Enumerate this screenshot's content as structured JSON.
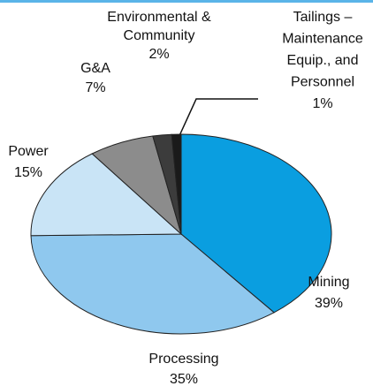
{
  "chart_data": {
    "type": "pie",
    "categories": [
      [
        "Mining"
      ],
      [
        "Processing"
      ],
      [
        "Power"
      ],
      [
        "G&A"
      ],
      [
        "Environmental &",
        "Community"
      ],
      [
        "Tailings –",
        "Maintenance",
        "Equip., and",
        "Personnel"
      ]
    ],
    "values": [
      39,
      35,
      15,
      7,
      2,
      1
    ],
    "value_labels": [
      "39%",
      "35%",
      "15%",
      "7%",
      "2%",
      "1%"
    ],
    "colors": [
      "#0a9ee0",
      "#8fc8ee",
      "#c9e4f6",
      "#8c8c8c",
      "#3c3c3c",
      "#1a1a1a"
    ]
  }
}
